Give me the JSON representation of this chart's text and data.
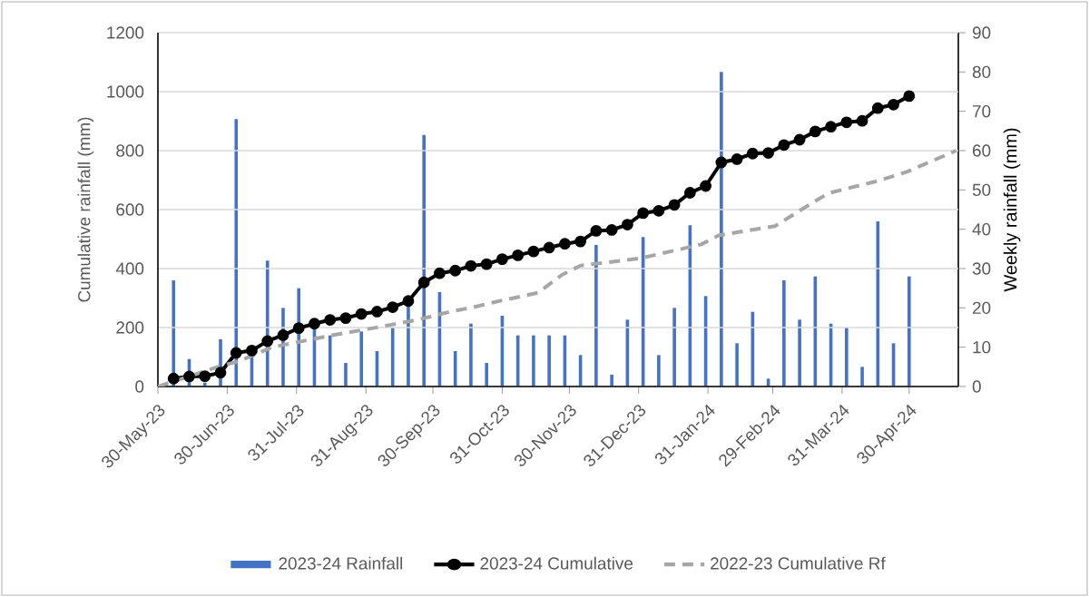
{
  "chart_data": {
    "type": "line",
    "ylabel": "Cumulative rainfall (mm)",
    "y2label": "Weekly rainfall (mm)",
    "xlim": [
      "2023-05-30",
      "2024-05-22"
    ],
    "xticks": [
      {
        "value": "2023-05-30",
        "label": "30-May-23"
      },
      {
        "value": "2023-06-30",
        "label": "30-Jun-23"
      },
      {
        "value": "2023-07-31",
        "label": "31-Jul-23"
      },
      {
        "value": "2023-08-31",
        "label": "31-Aug-23"
      },
      {
        "value": "2023-09-30",
        "label": "30-Sep-23"
      },
      {
        "value": "2023-10-31",
        "label": "31-Oct-23"
      },
      {
        "value": "2023-11-30",
        "label": "30-Nov-23"
      },
      {
        "value": "2023-12-31",
        "label": "31-Dec-23"
      },
      {
        "value": "2024-01-31",
        "label": "31-Jan-24"
      },
      {
        "value": "2024-02-29",
        "label": "29-Feb-24"
      },
      {
        "value": "2024-03-31",
        "label": "31-Mar-24"
      },
      {
        "value": "2024-04-30",
        "label": "30-Apr-24"
      }
    ],
    "ylim": [
      0,
      1200
    ],
    "yticks": [
      0,
      200,
      400,
      600,
      800,
      1000,
      1200
    ],
    "y2lim": [
      0,
      90
    ],
    "y2ticks": [
      0,
      10,
      20,
      30,
      40,
      50,
      60,
      70,
      80,
      90
    ],
    "grid": "y",
    "legend": "bottom",
    "series": [
      {
        "name": "2023-24 Rainfall",
        "type": "bar",
        "axis": "y2",
        "color": "#4472c4",
        "x": [
          "2023-06-06",
          "2023-06-13",
          "2023-06-20",
          "2023-06-27",
          "2023-07-04",
          "2023-07-11",
          "2023-07-18",
          "2023-07-25",
          "2023-08-01",
          "2023-08-08",
          "2023-08-15",
          "2023-08-22",
          "2023-08-29",
          "2023-09-05",
          "2023-09-12",
          "2023-09-19",
          "2023-09-26",
          "2023-10-03",
          "2023-10-10",
          "2023-10-17",
          "2023-10-24",
          "2023-10-31",
          "2023-11-07",
          "2023-11-14",
          "2023-11-21",
          "2023-11-28",
          "2023-12-05",
          "2023-12-12",
          "2023-12-19",
          "2023-12-26",
          "2024-01-02",
          "2024-01-09",
          "2024-01-16",
          "2024-01-23",
          "2024-01-30",
          "2024-02-06",
          "2024-02-13",
          "2024-02-20",
          "2024-02-27",
          "2024-03-05",
          "2024-03-12",
          "2024-03-19",
          "2024-03-26",
          "2024-04-02",
          "2024-04-09",
          "2024-04-16",
          "2024-04-23",
          "2024-04-30"
        ],
        "values": [
          27,
          7,
          1,
          12,
          68,
          8,
          32,
          20,
          25,
          15,
          13,
          6,
          14,
          9,
          15,
          21,
          64,
          24,
          9,
          16,
          6,
          18,
          13,
          13,
          13,
          13,
          8,
          36,
          3,
          17,
          38,
          8,
          20,
          41,
          23,
          80,
          11,
          19,
          2,
          27,
          17,
          28,
          16,
          15,
          5,
          42,
          11,
          28
        ]
      },
      {
        "name": "2023-24 Cumulative",
        "color": "#000000",
        "marker": "circle",
        "line_style": "solid",
        "x": [
          "2023-06-06",
          "2023-06-13",
          "2023-06-20",
          "2023-06-27",
          "2023-07-04",
          "2023-07-11",
          "2023-07-18",
          "2023-07-25",
          "2023-08-01",
          "2023-08-08",
          "2023-08-15",
          "2023-08-22",
          "2023-08-29",
          "2023-09-05",
          "2023-09-12",
          "2023-09-19",
          "2023-09-26",
          "2023-10-03",
          "2023-10-10",
          "2023-10-17",
          "2023-10-24",
          "2023-10-31",
          "2023-11-07",
          "2023-11-14",
          "2023-11-21",
          "2023-11-28",
          "2023-12-05",
          "2023-12-12",
          "2023-12-19",
          "2023-12-26",
          "2024-01-02",
          "2024-01-09",
          "2024-01-16",
          "2024-01-23",
          "2024-01-30",
          "2024-02-06",
          "2024-02-13",
          "2024-02-20",
          "2024-02-27",
          "2024-03-05",
          "2024-03-12",
          "2024-03-19",
          "2024-03-26",
          "2024-04-02",
          "2024-04-09",
          "2024-04-16",
          "2024-04-23",
          "2024-04-30"
        ],
        "values": [
          27,
          34,
          35,
          47,
          114,
          122,
          154,
          174,
          198,
          213,
          226,
          232,
          246,
          254,
          269,
          290,
          353,
          384,
          393,
          409,
          415,
          432,
          445,
          458,
          471,
          484,
          492,
          528,
          531,
          549,
          588,
          596,
          616,
          657,
          680,
          760,
          771,
          790,
          792,
          819,
          837,
          865,
          881,
          896,
          901,
          944,
          956,
          985
        ]
      },
      {
        "name": "2022-23 Cumulative Rf",
        "color": "#a6a6a6",
        "marker": "none",
        "line_style": "dashed",
        "x": [
          "2023-05-30",
          "2023-06-28",
          "2023-07-05",
          "2023-07-20",
          "2023-08-16",
          "2023-09-01",
          "2023-09-23",
          "2023-10-09",
          "2023-10-17",
          "2023-10-28",
          "2023-11-16",
          "2023-11-27",
          "2023-12-05",
          "2024-01-01",
          "2024-01-28",
          "2024-02-05",
          "2024-03-01",
          "2024-03-16",
          "2024-03-25",
          "2024-04-16",
          "2024-04-29",
          "2024-05-21"
        ],
        "values": [
          0,
          72,
          85,
          133,
          174,
          195,
          226,
          256,
          267,
          287,
          318,
          380,
          410,
          435,
          482,
          513,
          544,
          615,
          656,
          697,
          728,
          800
        ]
      }
    ]
  }
}
